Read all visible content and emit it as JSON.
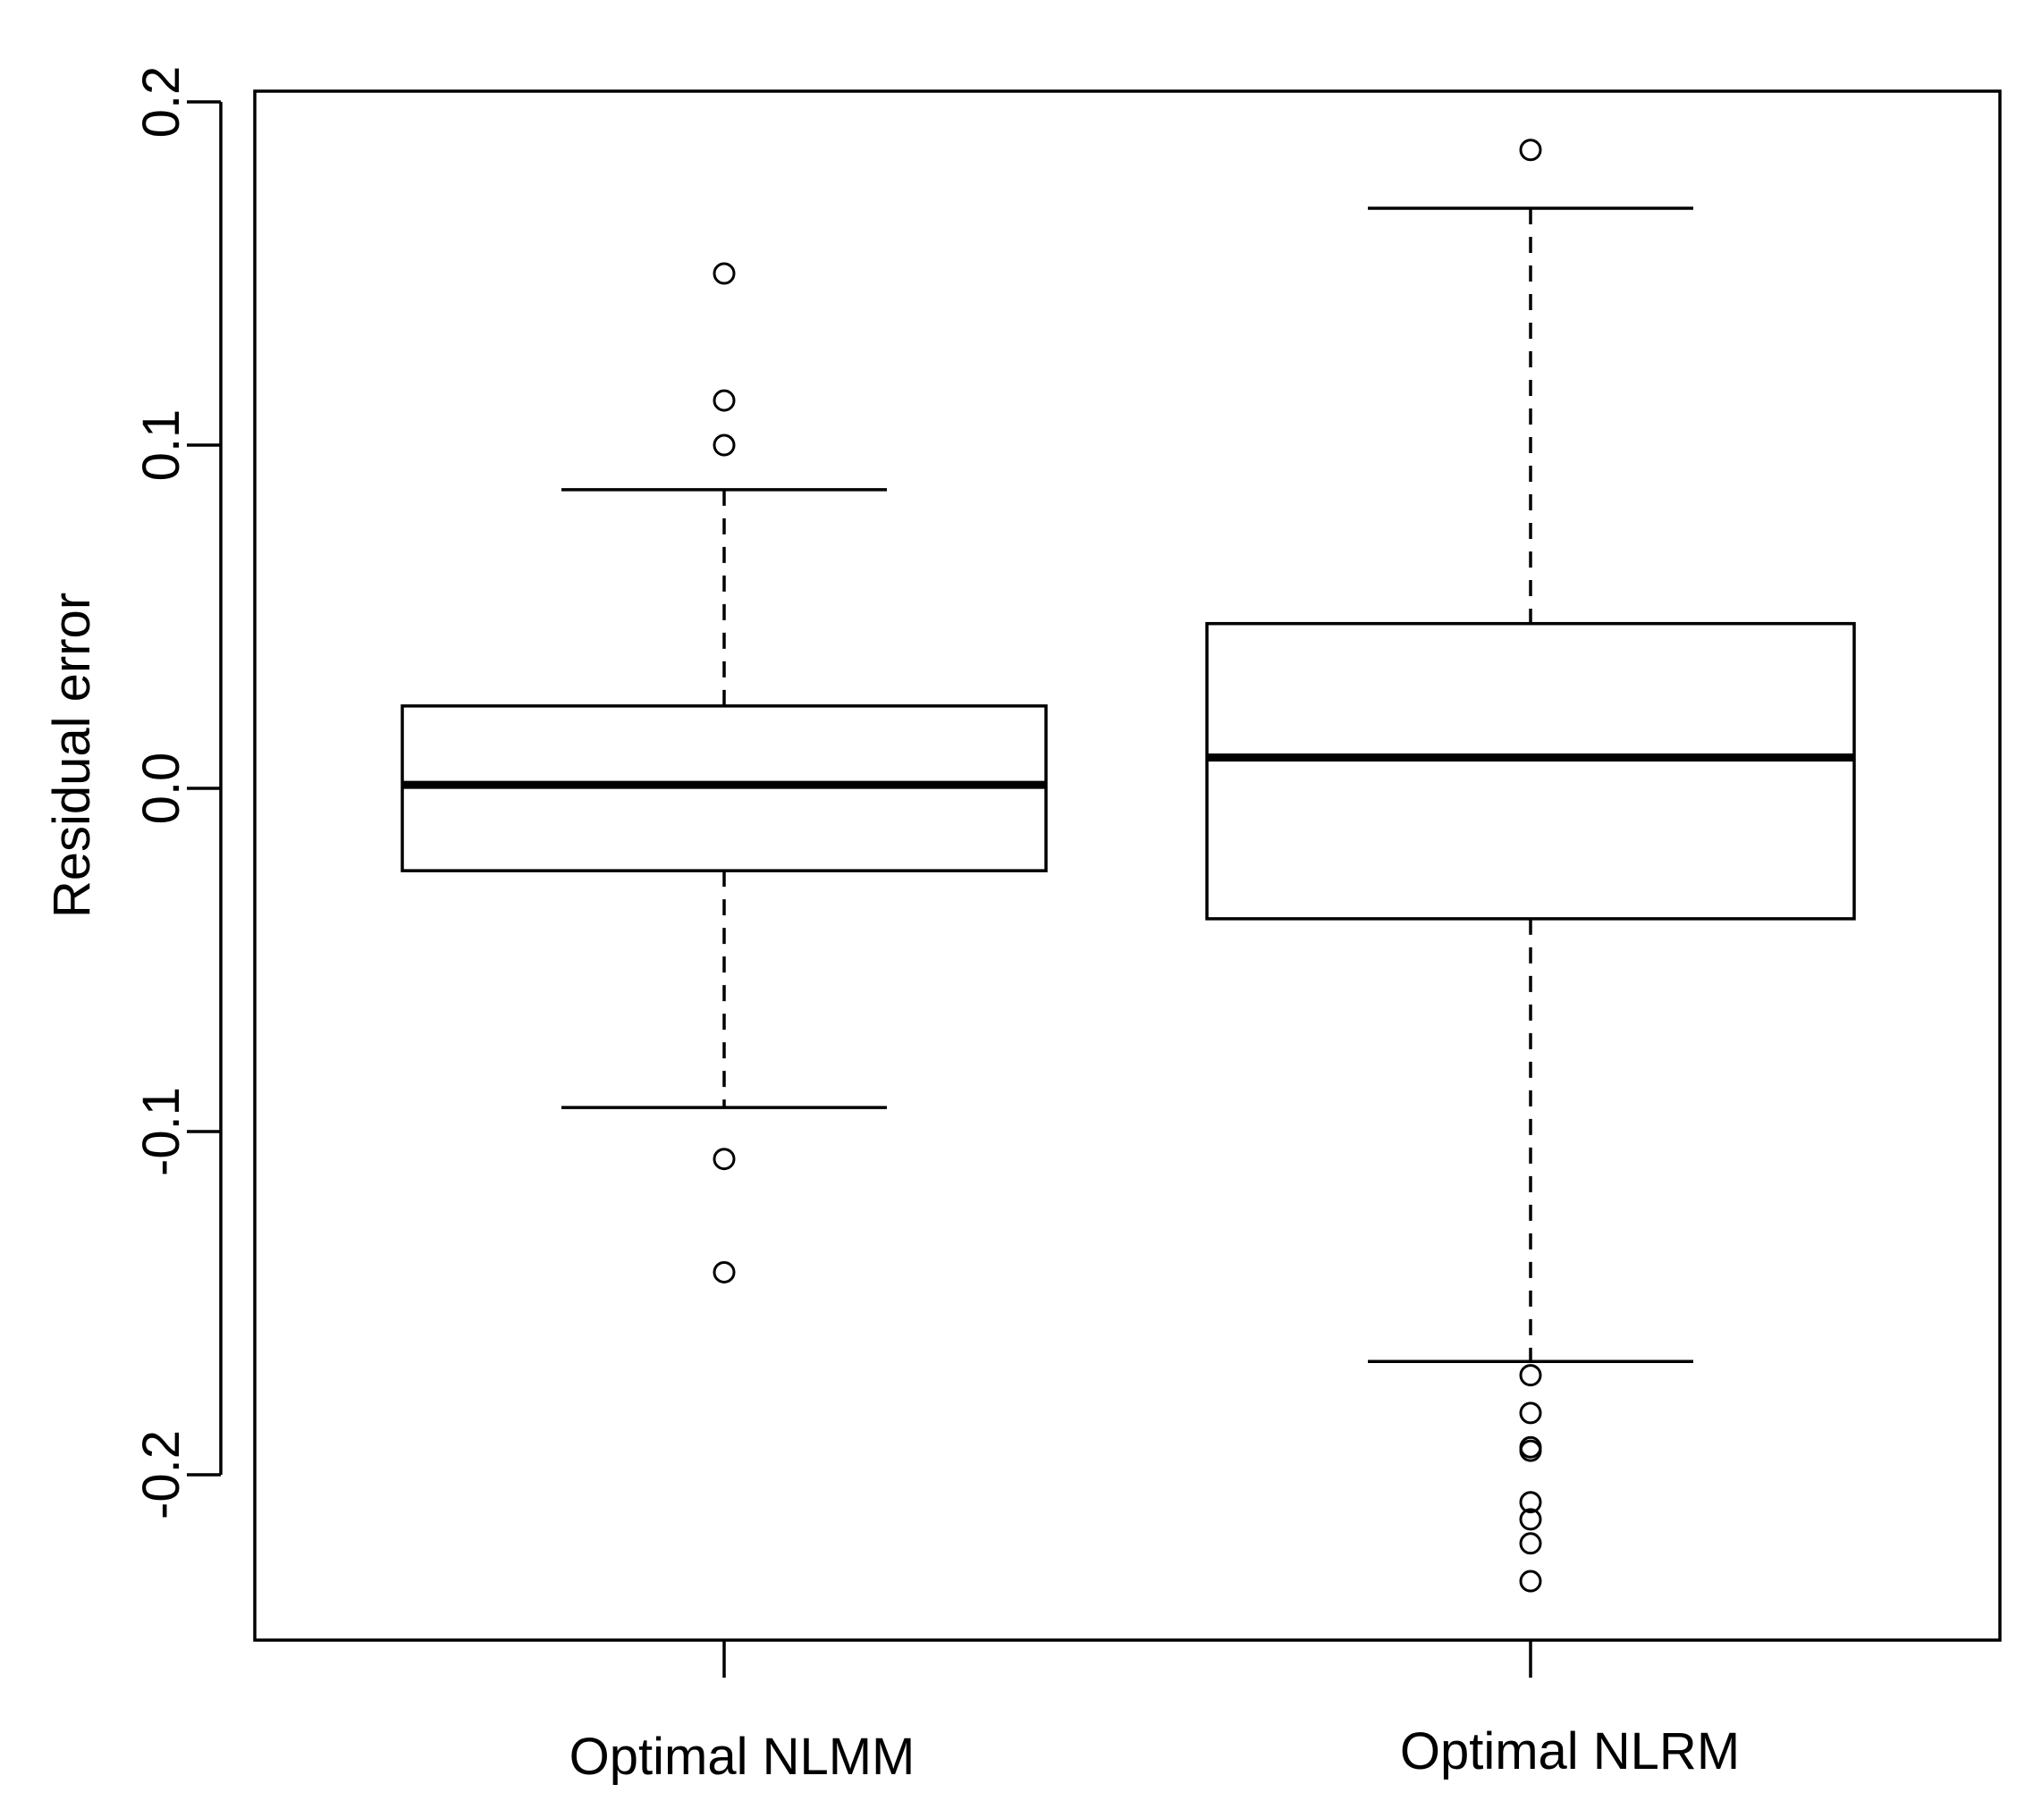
{
  "chart_data": {
    "type": "boxplot",
    "title": "",
    "xlabel": "",
    "ylabel": "Residual error",
    "ylim": [
      -0.248,
      0.203
    ],
    "yticks": [
      -0.2,
      -0.1,
      0.0,
      0.1,
      0.2
    ],
    "ytick_labels": [
      "-0.2",
      "-0.1",
      "0.0",
      "0.1",
      "0.2"
    ],
    "categories": [
      "Optimal NLMM",
      "Optimal NLRM"
    ],
    "boxes": [
      {
        "name": "Optimal NLMM",
        "whisker_low": -0.093,
        "q1": -0.024,
        "median": 0.001,
        "q3": 0.024,
        "whisker_high": 0.087,
        "outliers": [
          0.15,
          0.113,
          0.1,
          -0.108,
          -0.141
        ]
      },
      {
        "name": "Optimal NLRM",
        "whisker_low": -0.167,
        "q1": -0.038,
        "median": 0.009,
        "q3": 0.048,
        "whisker_high": 0.169,
        "outliers": [
          0.186,
          -0.171,
          -0.182,
          -0.192,
          -0.193,
          -0.208,
          -0.213,
          -0.22,
          -0.231
        ]
      }
    ],
    "grid": false,
    "legend": "none"
  }
}
